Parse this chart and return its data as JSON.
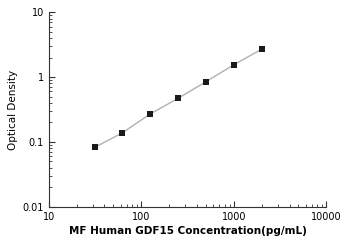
{
  "x_data": [
    31.25,
    62.5,
    125,
    250,
    500,
    1000,
    2000
  ],
  "y_data": [
    0.082,
    0.138,
    0.27,
    0.47,
    0.85,
    1.55,
    2.7
  ],
  "line_color": "#b0b0b0",
  "marker_color": "#1a1a1a",
  "marker_style": "s",
  "marker_size": 4,
  "xlabel": "MF Human GDF15 Concentration(pg/mL)",
  "ylabel": "Optical Density",
  "xlim": [
    10,
    10000
  ],
  "ylim": [
    0.01,
    10
  ],
  "xticks": [
    10,
    100,
    1000,
    10000
  ],
  "yticks": [
    0.01,
    0.1,
    1,
    10
  ],
  "xlabel_fontsize": 7.5,
  "ylabel_fontsize": 7.5,
  "tick_fontsize": 7,
  "bg_color": "#ffffff"
}
